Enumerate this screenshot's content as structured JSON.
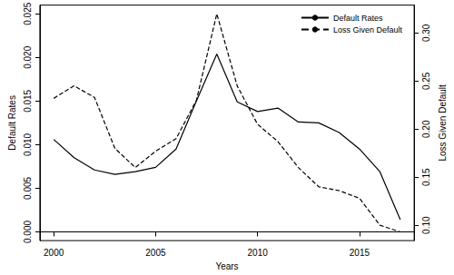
{
  "chart_data": {
    "type": "line",
    "x_label": "Years",
    "y_label": "Default Rates",
    "y2_label": "Loss Given Default",
    "x": [
      2000,
      2001,
      2002,
      2003,
      2004,
      2005,
      2006,
      2007,
      2008,
      2009,
      2010,
      2011,
      2012,
      2013,
      2014,
      2015,
      2016,
      2017
    ],
    "series": [
      {
        "name": "Default Rates",
        "color": "#000000",
        "line_style": "solid",
        "values": [
          0.0106,
          0.0085,
          0.0071,
          0.0066,
          0.0069,
          0.0074,
          0.0095,
          0.015,
          0.0204,
          0.0149,
          0.0138,
          0.0142,
          0.0126,
          0.0125,
          0.0114,
          0.0095,
          0.0069,
          0.0014
        ]
      },
      {
        "name": "Loss Given Default",
        "color": "#000000",
        "line_style": "dashed",
        "axis": "y2",
        "values": [
          0.232,
          0.245,
          0.233,
          0.18,
          0.16,
          0.177,
          0.19,
          0.23,
          0.32,
          0.245,
          0.205,
          0.187,
          0.16,
          0.14,
          0.136,
          0.128,
          0.1,
          0.093
        ]
      }
    ],
    "xlim": [
      1999.32,
      2017.68
    ],
    "xticks": [
      2000,
      2005,
      2010,
      2015
    ],
    "ylim": [
      -0.001,
      0.026
    ],
    "yticks": [
      {
        "value": 0,
        "label": "0.000"
      },
      0.005,
      {
        "value": 0.01,
        "label": "0.010"
      },
      0.015,
      {
        "value": 0.02,
        "label": "0.020"
      },
      0.025
    ],
    "y2lim": [
      0.084,
      0.329
    ],
    "y2ticks": [
      {
        "value": 0.1,
        "label": "0.10"
      },
      0.15,
      {
        "value": 0.2,
        "label": "0.20"
      },
      0.25,
      {
        "value": 0.3,
        "label": "0.30"
      }
    ],
    "grid": false,
    "legend": "upper right"
  }
}
